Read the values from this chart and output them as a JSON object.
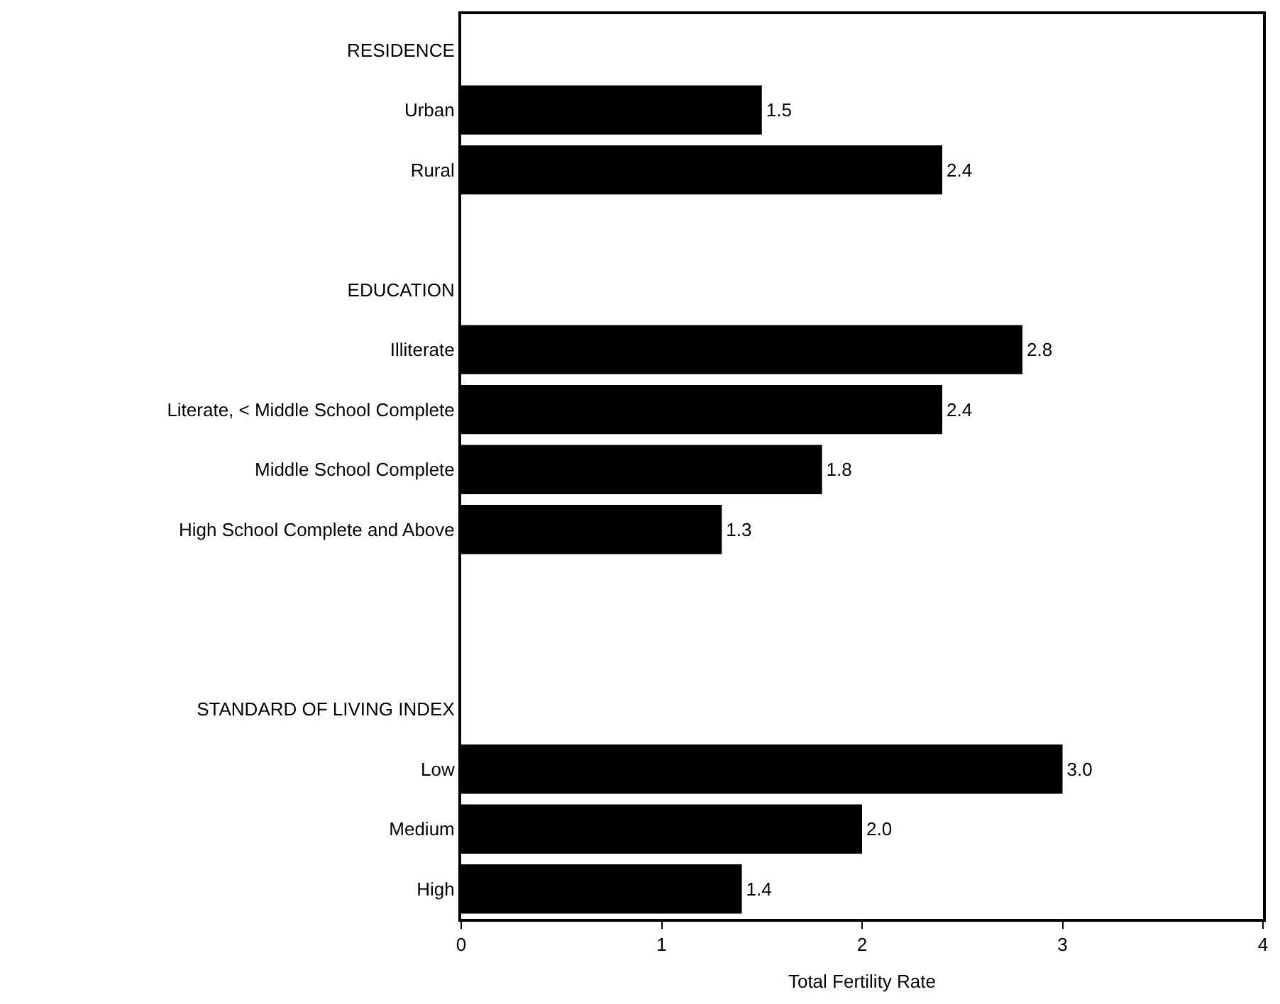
{
  "chart_data": {
    "type": "bar",
    "orientation": "horizontal",
    "xlabel": "Total Fertility Rate",
    "categories": [
      "RESIDENCE",
      "Urban",
      "Rural",
      null,
      "EDUCATION",
      "Illiterate",
      "Literate, < Middle School Complete",
      "Middle School Complete",
      "High School Complete and Above",
      null,
      null,
      "STANDARD OF LIVING INDEX",
      "Low",
      "Medium",
      "High"
    ],
    "values": [
      null,
      1.5,
      2.4,
      null,
      null,
      2.8,
      2.4,
      1.8,
      1.3,
      null,
      null,
      null,
      3.0,
      2.0,
      1.4
    ],
    "value_labels": [
      null,
      "1.5",
      "2.4",
      null,
      null,
      "2.8",
      "2.4",
      "1.8",
      "1.3",
      null,
      null,
      null,
      "3.0",
      "2.0",
      "1.4"
    ],
    "color": "#000000",
    "xlim": [
      0,
      4
    ],
    "xticks": [
      0,
      1,
      2,
      3,
      4
    ]
  }
}
